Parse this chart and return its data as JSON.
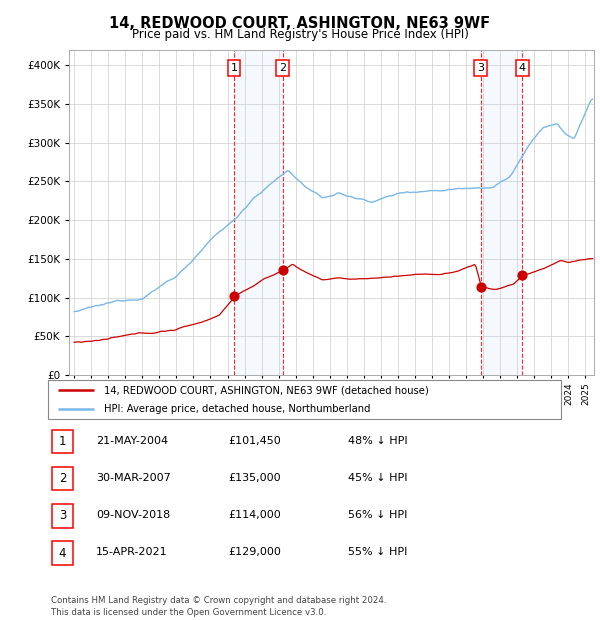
{
  "title": "14, REDWOOD COURT, ASHINGTON, NE63 9WF",
  "subtitle": "Price paid vs. HM Land Registry's House Price Index (HPI)",
  "ylim": [
    0,
    420000
  ],
  "xlim_start": 1994.7,
  "xlim_end": 2025.5,
  "hpi_color": "#7ab8e8",
  "price_color": "#cc0000",
  "grid_color": "#cccccc",
  "shade_color": "#ddeeff",
  "transactions": [
    {
      "label": "1",
      "date_float": 2004.38,
      "price": 101450
    },
    {
      "label": "2",
      "date_float": 2007.24,
      "price": 135000
    },
    {
      "label": "3",
      "date_float": 2018.85,
      "price": 114000
    },
    {
      "label": "4",
      "date_float": 2021.29,
      "price": 129000
    }
  ],
  "legend_property": "14, REDWOOD COURT, ASHINGTON, NE63 9WF (detached house)",
  "legend_hpi": "HPI: Average price, detached house, Northumberland",
  "footer": "Contains HM Land Registry data © Crown copyright and database right 2024.\nThis data is licensed under the Open Government Licence v3.0.",
  "table_rows": [
    {
      "num": "1",
      "date": "21-MAY-2004",
      "price": "£101,450",
      "pct": "48% ↓ HPI"
    },
    {
      "num": "2",
      "date": "30-MAR-2007",
      "price": "£135,000",
      "pct": "45% ↓ HPI"
    },
    {
      "num": "3",
      "date": "09-NOV-2018",
      "price": "£114,000",
      "pct": "56% ↓ HPI"
    },
    {
      "num": "4",
      "date": "15-APR-2021",
      "price": "£129,000",
      "pct": "55% ↓ HPI"
    }
  ]
}
